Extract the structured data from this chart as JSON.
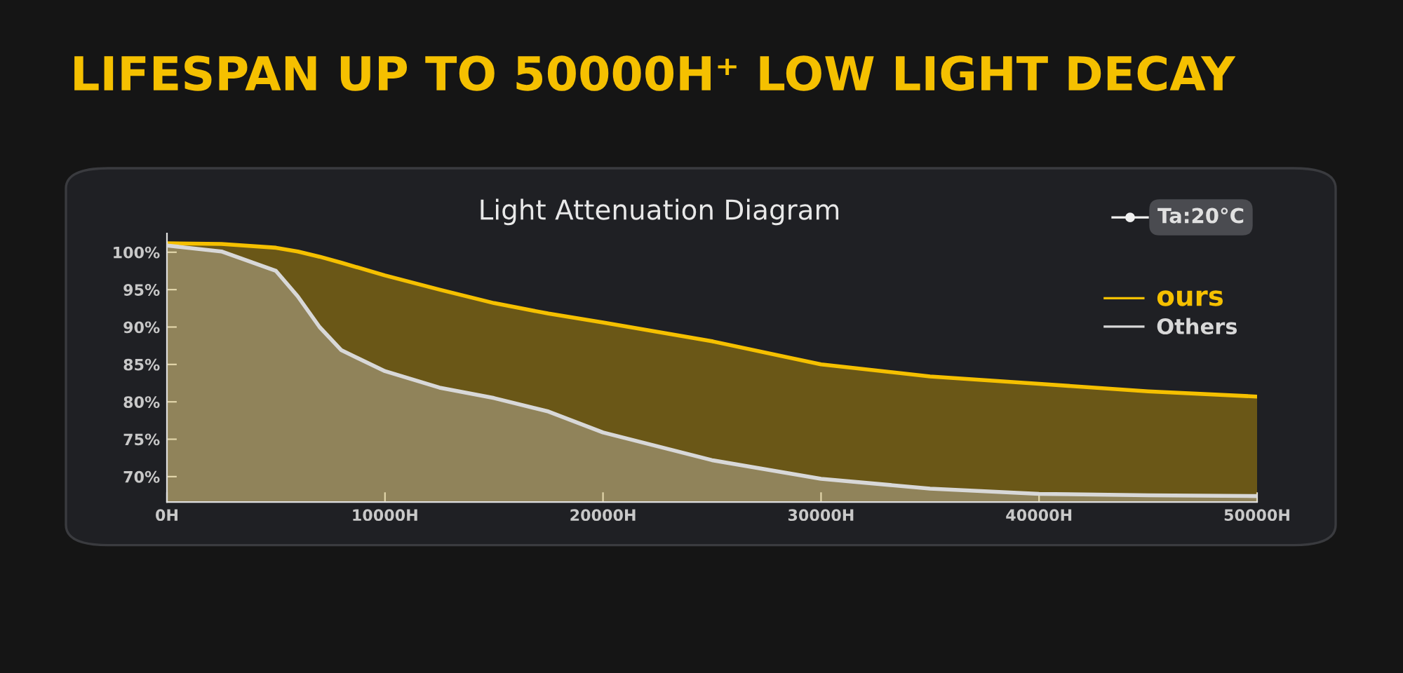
{
  "chart_data": {
    "type": "area",
    "title": "LIFESPAN UP TO 50000H⁺ LOW LIGHT DECAY",
    "subtitle": "Light Attenuation Diagram",
    "annotations": [
      "Ta:20°C"
    ],
    "x": [
      0,
      2500,
      5000,
      6000,
      7000,
      8000,
      10000,
      12500,
      15000,
      17500,
      20000,
      25000,
      30000,
      35000,
      40000,
      45000,
      50000
    ],
    "series": [
      {
        "name": "ours",
        "color": "#f5c000",
        "values": [
          101.2,
          101.1,
          100.6,
          100.1,
          99.4,
          98.6,
          96.9,
          95.0,
          93.2,
          91.8,
          90.6,
          88.1,
          85.0,
          83.4,
          82.4,
          81.4,
          80.7
        ]
      },
      {
        "name": "Others",
        "color": "#d8d8d8",
        "values": [
          100.9,
          100.1,
          97.5,
          94.1,
          90.0,
          86.9,
          84.1,
          81.9,
          80.5,
          78.7,
          75.9,
          72.2,
          69.7,
          68.4,
          67.7,
          67.5,
          67.4
        ]
      }
    ],
    "xlim": [
      0,
      50000
    ],
    "xticks": [
      {
        "value": 0,
        "label": "0H"
      },
      {
        "value": 10000,
        "label": "10000H"
      },
      {
        "value": 20000,
        "label": "20000H"
      },
      {
        "value": 30000,
        "label": "30000H"
      },
      {
        "value": 40000,
        "label": "40000H"
      },
      {
        "value": 50000,
        "label": "50000H"
      }
    ],
    "ylim": [
      66.6,
      102.5
    ],
    "yticks": [
      {
        "value": 70,
        "label": "70%"
      },
      {
        "value": 75,
        "label": "75%"
      },
      {
        "value": 80,
        "label": "80%"
      },
      {
        "value": 85,
        "label": "85%"
      },
      {
        "value": 90,
        "label": "90%"
      },
      {
        "value": 95,
        "label": "95%"
      },
      {
        "value": 100,
        "label": "100%"
      }
    ],
    "legend": "top right",
    "grid": false,
    "marker": "none"
  }
}
